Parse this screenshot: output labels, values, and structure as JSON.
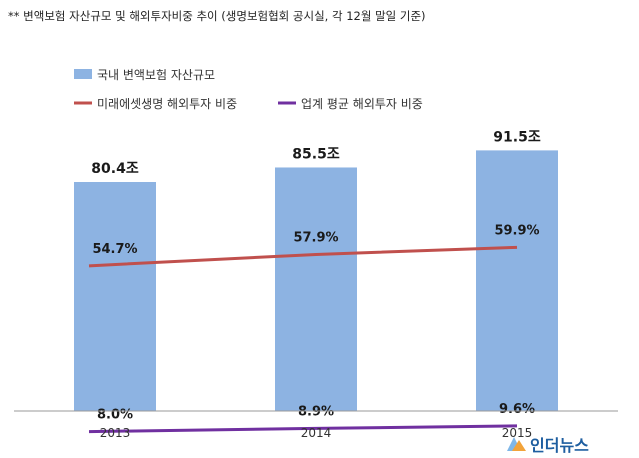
{
  "note": "** 변액보험 자산규모 및 해외투자비중 추이 (생명보험협회 공시실, 각 12월 말일 기준)",
  "watermark": "인더뉴스",
  "colors": {
    "bar": "#8db3e2",
    "series_mirae": "#c0504d",
    "series_industry": "#7030a0",
    "axis": "#9a9a9a"
  },
  "chart_data": {
    "type": "bar",
    "categories": [
      "2013",
      "2014",
      "2015"
    ],
    "bar_series": {
      "name": "국내 변액보험 자산규모",
      "values": [
        80.4,
        85.5,
        91.5
      ],
      "labels": [
        "80.4조",
        "85.5조",
        "91.5조"
      ]
    },
    "line_series": [
      {
        "name": "미래에셋생명 해외투자 비중",
        "values": [
          54.7,
          57.9,
          59.9
        ],
        "labels": [
          "54.7%",
          "57.9%",
          "59.9%"
        ]
      },
      {
        "name": "업계 평균 해외투자 비중",
        "values": [
          8.0,
          8.9,
          9.6
        ],
        "labels": [
          "8.0%",
          "8.9%",
          "9.6%"
        ]
      }
    ],
    "legend_position": "top-left",
    "grid": false
  }
}
